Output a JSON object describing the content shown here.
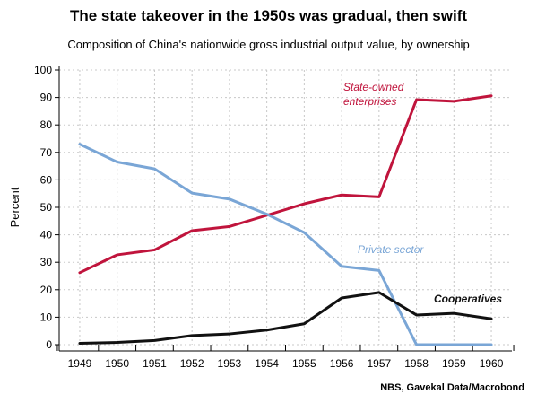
{
  "title": "The state takeover in the 1950s was gradual, then swift",
  "subtitle": "Composition of China's nationwide gross industrial output value, by ownership",
  "source": "NBS, Gavekal Data/Macrobond",
  "chart_data": {
    "type": "line",
    "ylabel": "Percent",
    "xlabel": "",
    "ylim": [
      0,
      100
    ],
    "yticks": [
      0,
      10,
      20,
      30,
      40,
      50,
      60,
      70,
      80,
      90,
      100
    ],
    "x": [
      1949,
      1950,
      1951,
      1952,
      1953,
      1954,
      1955,
      1956,
      1957,
      1958,
      1959,
      1960
    ],
    "grid": true,
    "series": [
      {
        "name": "State-owned enterprises",
        "label_lines": [
          "State-owned",
          "enterprises"
        ],
        "color": "#c0143c",
        "values": [
          26.2,
          32.7,
          34.5,
          41.5,
          43.0,
          47.1,
          51.3,
          54.5,
          53.8,
          89.2,
          88.6,
          90.6
        ]
      },
      {
        "name": "Private sector",
        "label_lines": [
          "Private sector"
        ],
        "color": "#7aa6d6",
        "values": [
          73.0,
          66.5,
          64.0,
          55.2,
          53.0,
          47.5,
          40.8,
          28.5,
          27.0,
          0,
          0,
          0
        ]
      },
      {
        "name": "Cooperatives",
        "label_lines": [
          "Cooperatives"
        ],
        "color": "#111111",
        "values": [
          0.5,
          0.8,
          1.5,
          3.3,
          3.9,
          5.3,
          7.6,
          17.0,
          19.0,
          10.8,
          11.4,
          9.4
        ]
      }
    ]
  }
}
